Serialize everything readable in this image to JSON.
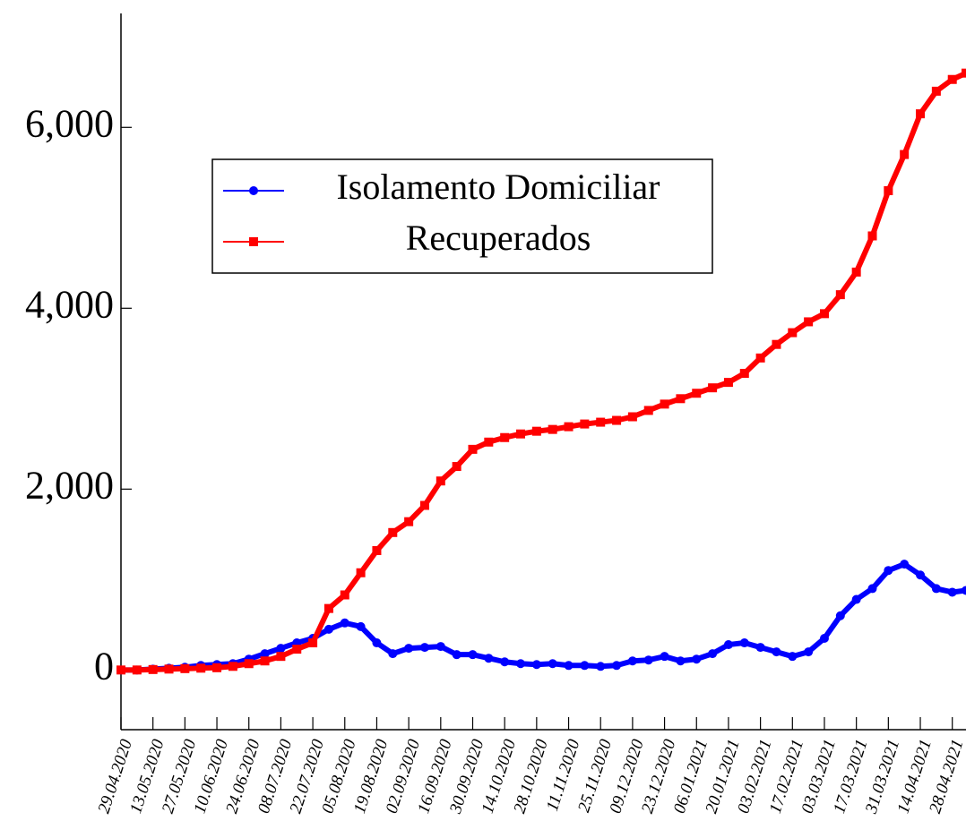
{
  "chart_data": {
    "type": "line",
    "x": [
      "29.04.2020",
      "06.05.2020",
      "13.05.2020",
      "20.05.2020",
      "27.05.2020",
      "03.06.2020",
      "10.06.2020",
      "17.06.2020",
      "24.06.2020",
      "01.07.2020",
      "08.07.2020",
      "15.07.2020",
      "22.07.2020",
      "29.07.2020",
      "05.08.2020",
      "12.08.2020",
      "19.08.2020",
      "26.08.2020",
      "02.09.2020",
      "09.09.2020",
      "16.09.2020",
      "23.09.2020",
      "30.09.2020",
      "07.10.2020",
      "14.10.2020",
      "21.10.2020",
      "28.10.2020",
      "04.11.2020",
      "11.11.2020",
      "18.11.2020",
      "25.11.2020",
      "02.12.2020",
      "09.12.2020",
      "16.12.2020",
      "23.12.2020",
      "30.12.2020",
      "06.01.2021",
      "13.01.2021",
      "20.01.2021",
      "27.01.2021",
      "03.02.2021",
      "10.02.2021",
      "17.02.2021",
      "24.02.2021",
      "03.03.2021",
      "10.03.2021",
      "17.03.2021",
      "24.03.2021",
      "31.03.2021",
      "07.04.2021",
      "14.04.2021",
      "21.04.2021",
      "28.04.2021",
      "04.05.2021"
    ],
    "series": [
      {
        "name": "Isolamento Domiciliar",
        "color": "#0000ff",
        "marker": "circle",
        "values": [
          0,
          0,
          10,
          20,
          30,
          50,
          60,
          70,
          120,
          180,
          240,
          300,
          350,
          450,
          520,
          480,
          300,
          180,
          240,
          250,
          260,
          170,
          170,
          130,
          90,
          70,
          60,
          70,
          50,
          50,
          40,
          50,
          100,
          110,
          150,
          100,
          120,
          180,
          280,
          300,
          250,
          200,
          150,
          200,
          350,
          600,
          780,
          900,
          1100,
          1170,
          1050,
          900,
          860,
          880
        ]
      },
      {
        "name": "Recuperados",
        "color": "#ff0000",
        "marker": "square",
        "values": [
          0,
          0,
          5,
          10,
          15,
          20,
          25,
          40,
          70,
          100,
          150,
          230,
          300,
          680,
          830,
          1075,
          1320,
          1520,
          1640,
          1820,
          2090,
          2250,
          2440,
          2520,
          2570,
          2610,
          2640,
          2660,
          2690,
          2720,
          2740,
          2760,
          2800,
          2870,
          2940,
          3000,
          3060,
          3120,
          3180,
          3280,
          3450,
          3600,
          3730,
          3850,
          3940,
          4150,
          4400,
          4800,
          5300,
          5700,
          6150,
          6400,
          6530,
          6600
        ]
      }
    ],
    "xlim": [
      "29.04.2020",
      "04.05.2021"
    ],
    "xticks": [
      "29.04.2020",
      "13.05.2020",
      "27.05.2020",
      "10.06.2020",
      "24.06.2020",
      "08.07.2020",
      "22.07.2020",
      "05.08.2020",
      "19.08.2020",
      "02.09.2020",
      "16.09.2020",
      "30.09.2020",
      "14.10.2020",
      "28.10.2020",
      "11.11.2020",
      "25.11.2020",
      "09.12.2020",
      "23.12.2020",
      "06.01.2021",
      "20.01.2021",
      "03.02.2021",
      "17.02.2021",
      "03.03.2021",
      "17.03.2021",
      "31.03.2021",
      "14.04.2021",
      "28.04.2021"
    ],
    "ylim": [
      -660,
      7260
    ],
    "yticks": [
      0,
      {
        "value": 2000,
        "label": "2,000"
      },
      {
        "value": 4000,
        "label": "4,000"
      },
      {
        "value": 6000,
        "label": "6,000"
      }
    ],
    "legend": "north west"
  }
}
